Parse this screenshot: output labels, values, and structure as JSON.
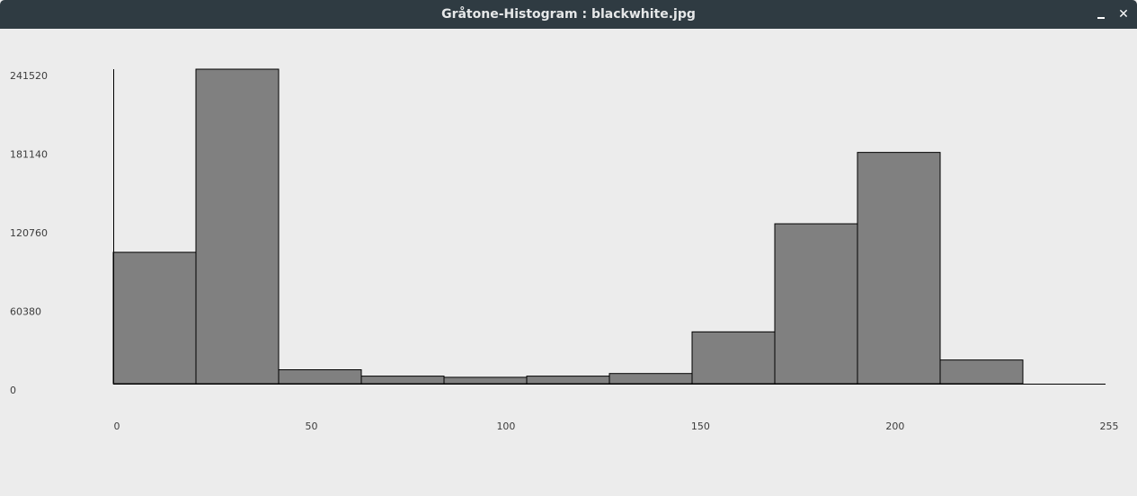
{
  "window": {
    "title": "Gråtone-Histogram : blackwhite.jpg",
    "minimize_icon": "minimize-icon",
    "close_icon": "close-icon",
    "close_glyph": "✕"
  },
  "chart_data": {
    "type": "bar",
    "title": "",
    "xlabel": "",
    "ylabel": "",
    "xlim": [
      0,
      255
    ],
    "ylim": [
      0,
      241520
    ],
    "bin_edges": [
      0,
      21.25,
      42.5,
      63.75,
      85,
      106.25,
      127.5,
      148.75,
      170,
      191.25,
      212.5,
      233.75,
      255
    ],
    "values": [
      100900,
      241520,
      10700,
      5800,
      4900,
      5800,
      7800,
      39800,
      122800,
      177600,
      18200,
      0
    ],
    "y_ticks": [
      "0",
      "60380",
      "120760",
      "181140",
      "241520"
    ],
    "y_tick_values": [
      0,
      60380,
      120760,
      181140,
      241520
    ],
    "x_ticks": [
      "0",
      "50",
      "100",
      "150",
      "200",
      "255"
    ],
    "x_tick_values": [
      0,
      50,
      100,
      150,
      200,
      255
    ],
    "bar_color": "#808080",
    "bar_edge_color": "#000000",
    "grid": false,
    "legend": "none"
  }
}
